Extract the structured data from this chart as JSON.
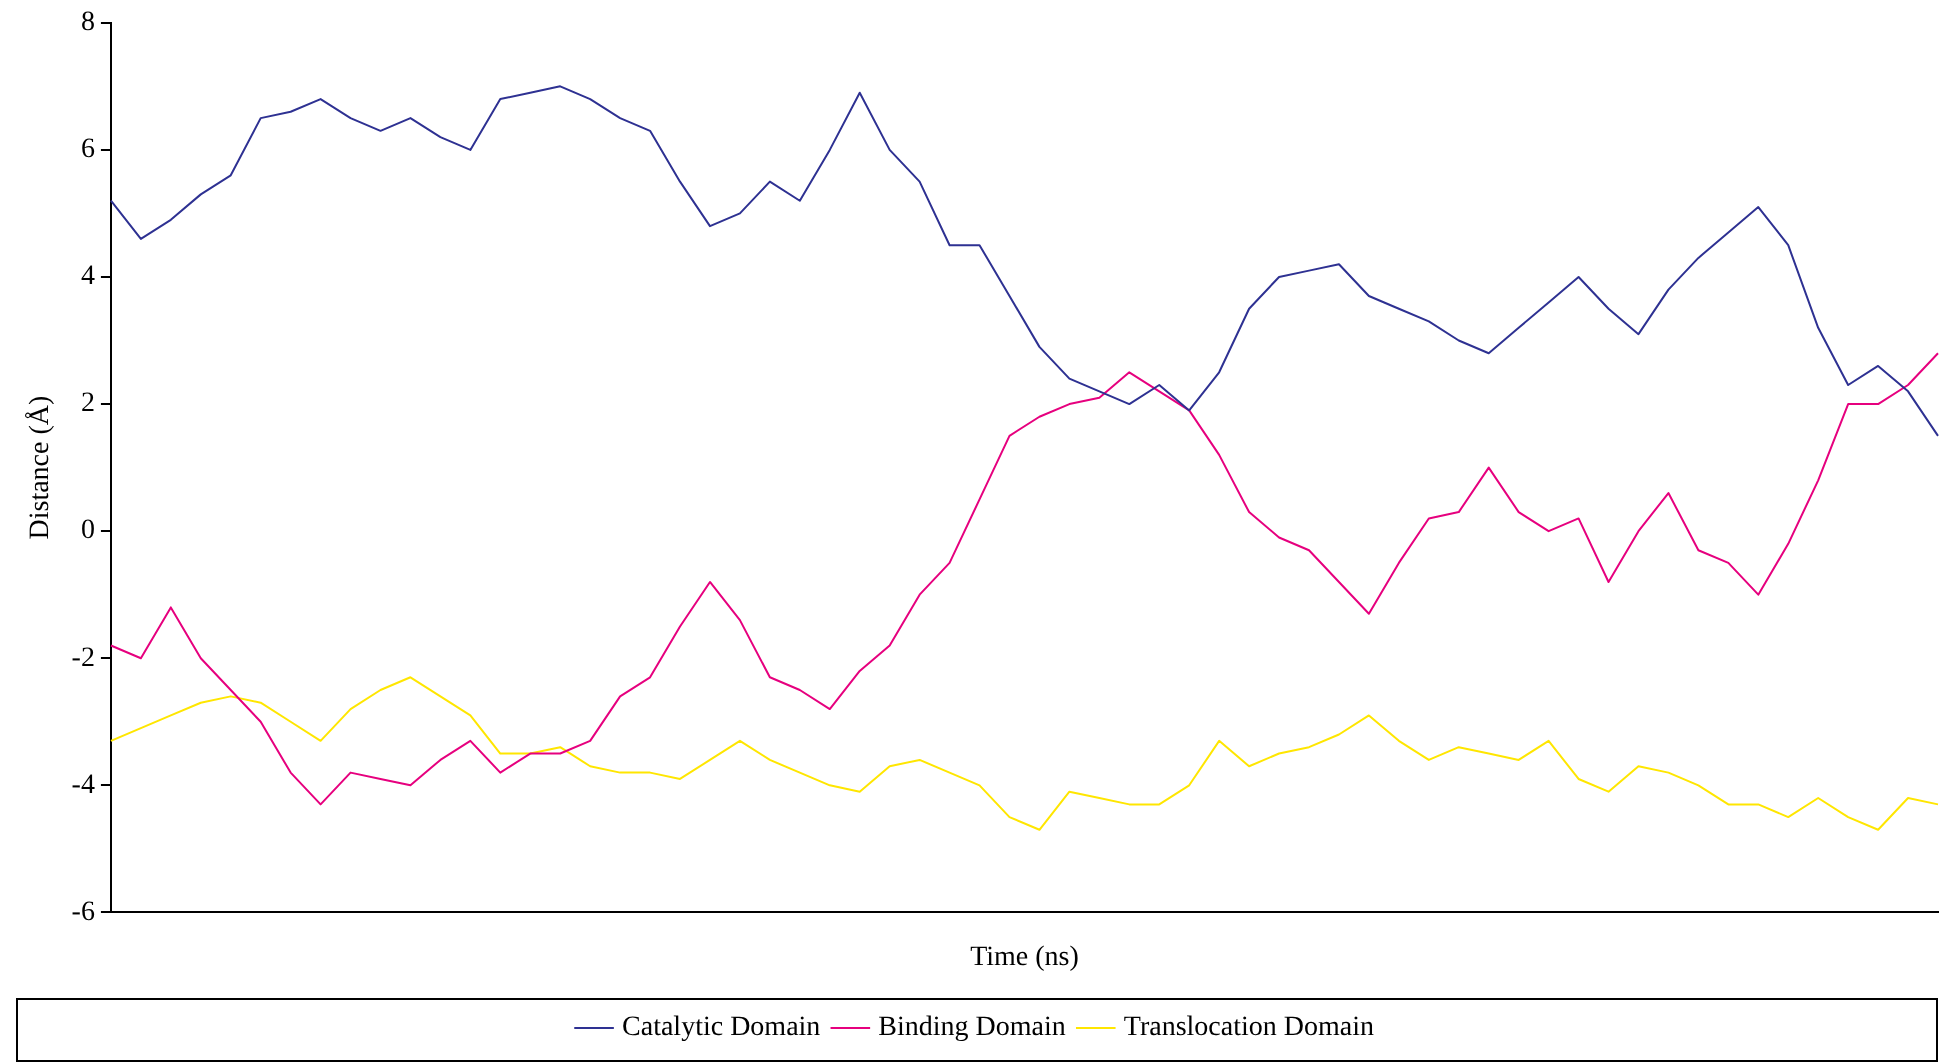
{
  "chart_data": {
    "type": "line",
    "xlabel": "Time (ns)",
    "ylabel": "Distance (Å)",
    "ylim": [
      -6,
      8
    ],
    "yticks": [
      -6,
      -4,
      -2,
      0,
      2,
      4,
      6,
      8
    ],
    "grid": false,
    "legend": "bottom",
    "marker": "none",
    "tick_labels": "y",
    "categories": [
      null,
      null,
      null,
      null,
      null,
      null,
      null,
      null,
      null,
      null,
      null,
      null,
      null,
      null,
      null,
      null,
      null,
      null,
      null,
      null,
      null,
      null,
      null,
      null,
      null,
      null,
      null,
      null,
      null,
      null,
      null,
      null,
      null,
      null,
      null,
      null,
      null,
      null,
      null,
      null,
      null,
      null,
      null,
      null,
      null,
      null,
      null,
      null,
      null,
      null,
      null,
      null,
      null,
      null,
      null,
      null,
      null,
      null,
      null,
      null,
      null,
      null
    ],
    "series": [
      {
        "name": "Catalytic Domain",
        "color": "#2e3192",
        "values": [
          5.2,
          4.6,
          4.9,
          5.3,
          5.6,
          6.5,
          6.6,
          6.8,
          6.5,
          6.3,
          6.5,
          6.2,
          6.0,
          6.8,
          6.9,
          7.0,
          6.8,
          6.5,
          6.3,
          5.5,
          4.8,
          5.0,
          5.5,
          5.2,
          6.0,
          6.9,
          6.0,
          5.5,
          4.5,
          4.5,
          3.7,
          2.9,
          2.4,
          2.2,
          2.0,
          2.3,
          1.9,
          2.5,
          3.5,
          4.0,
          4.1,
          4.2,
          3.7,
          3.5,
          3.3,
          3.0,
          2.8,
          3.2,
          3.6,
          4.0,
          3.5,
          3.1,
          3.8,
          4.3,
          4.7,
          5.1,
          4.5,
          3.2,
          2.3,
          2.6,
          2.2,
          1.5
        ]
      },
      {
        "name": "Binding Domain",
        "color": "#e6007e",
        "values": [
          -1.8,
          -2.0,
          -1.2,
          -2.0,
          -2.5,
          -3.0,
          -3.8,
          -4.3,
          -3.8,
          -3.9,
          -4.0,
          -3.6,
          -3.3,
          -3.8,
          -3.5,
          -3.5,
          -3.3,
          -2.6,
          -2.3,
          -1.5,
          -0.8,
          -1.4,
          -2.3,
          -2.5,
          -2.8,
          -2.2,
          -1.8,
          -1.0,
          -0.5,
          0.5,
          1.5,
          1.8,
          2.0,
          2.1,
          2.5,
          2.2,
          1.9,
          1.2,
          0.3,
          -0.1,
          -0.3,
          -0.8,
          -1.3,
          -0.5,
          0.2,
          0.3,
          1.0,
          0.3,
          0.0,
          0.2,
          -0.8,
          0.0,
          0.6,
          -0.3,
          -0.5,
          -1.0,
          -0.2,
          0.8,
          2.0,
          2.0,
          2.3,
          2.8
        ]
      },
      {
        "name": "Translocation Domain",
        "color": "#ffe600",
        "values": [
          -3.3,
          -3.1,
          -2.9,
          -2.7,
          -2.6,
          -2.7,
          -3.0,
          -3.3,
          -2.8,
          -2.5,
          -2.3,
          -2.6,
          -2.9,
          -3.5,
          -3.5,
          -3.4,
          -3.7,
          -3.8,
          -3.8,
          -3.9,
          -3.6,
          -3.3,
          -3.6,
          -3.8,
          -4.0,
          -4.1,
          -3.7,
          -3.6,
          -3.8,
          -4.0,
          -4.5,
          -4.7,
          -4.1,
          -4.2,
          -4.3,
          -4.3,
          -4.0,
          -3.3,
          -3.7,
          -3.5,
          -3.4,
          -3.2,
          -2.9,
          -3.3,
          -3.6,
          -3.4,
          -3.5,
          -3.6,
          -3.3,
          -3.9,
          -4.1,
          -3.7,
          -3.8,
          -4.0,
          -4.3,
          -4.3,
          -4.5,
          -4.2,
          -4.5,
          -4.7,
          -4.2,
          -4.3
        ]
      }
    ]
  }
}
